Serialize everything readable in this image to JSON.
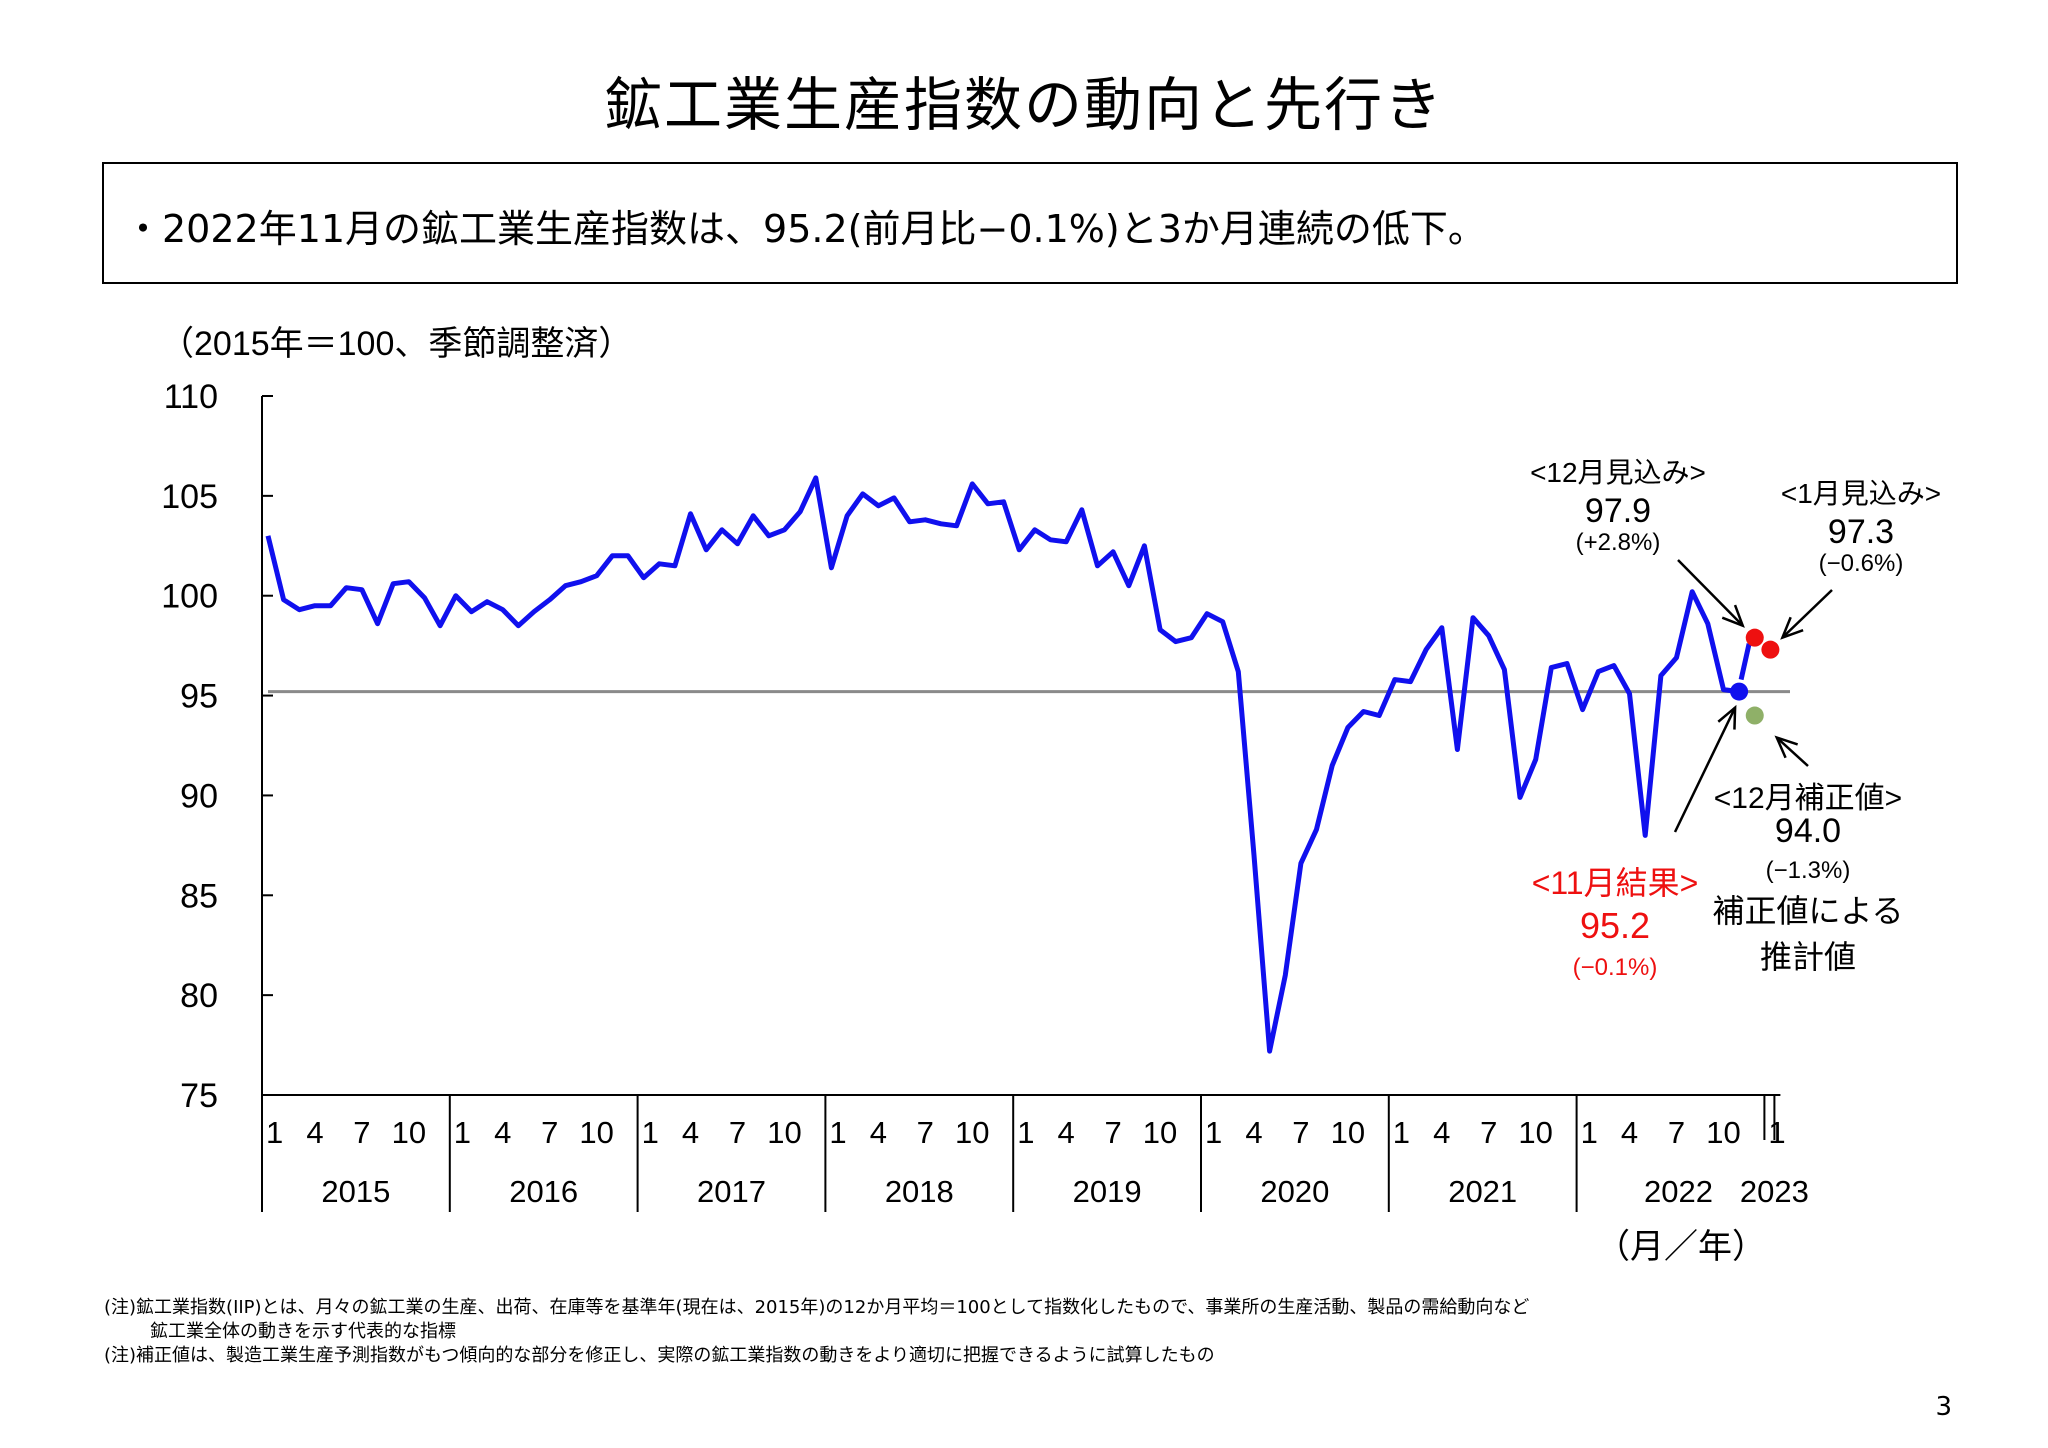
{
  "title": "鉱工業生産指数の動向と先行き",
  "summary": "・2022年11月の鉱工業生産指数は、95.2(前月比−0.1%)と3か月連続の低下。",
  "chart_data": {
    "type": "line",
    "unit_label": "（2015年＝100、季節調整済）",
    "x_axis_label": "（月／年）",
    "ylim": [
      75,
      110
    ],
    "y_ticks": [
      75,
      80,
      85,
      90,
      95,
      100,
      105,
      110
    ],
    "month_ticks": [
      "1",
      "4",
      "7",
      "10"
    ],
    "years": [
      "2015",
      "2016",
      "2017",
      "2018",
      "2019",
      "2020",
      "2021",
      "2022",
      "2023"
    ],
    "series": [
      {
        "color": "#1010ee",
        "start": "2015-01",
        "values": [
          103.0,
          99.8,
          99.3,
          99.5,
          99.5,
          100.4,
          100.3,
          98.6,
          100.6,
          100.7,
          99.9,
          98.5,
          100.0,
          99.2,
          99.7,
          99.3,
          98.5,
          99.2,
          99.8,
          100.5,
          100.7,
          101.0,
          102.0,
          102.0,
          100.9,
          101.6,
          101.5,
          104.1,
          102.3,
          103.3,
          102.6,
          104.0,
          103.0,
          103.3,
          104.2,
          105.9,
          101.4,
          104.0,
          105.1,
          104.5,
          104.9,
          103.7,
          103.8,
          103.6,
          103.5,
          105.6,
          104.6,
          104.7,
          102.3,
          103.3,
          102.8,
          102.7,
          104.3,
          101.5,
          102.2,
          100.5,
          102.5,
          98.3,
          97.7,
          97.9,
          99.1,
          98.7,
          96.2,
          87.0,
          77.2,
          81.0,
          86.6,
          88.3,
          91.5,
          93.4,
          94.2,
          94.0,
          95.8,
          95.7,
          97.3,
          98.4,
          92.3,
          98.9,
          98.0,
          96.3,
          89.9,
          91.8,
          96.4,
          96.6,
          94.3,
          96.2,
          96.5,
          95.1,
          88.0,
          96.0,
          96.9,
          100.2,
          98.6,
          95.3,
          95.2
        ],
        "projection_link": [
          95.8,
          97.6
        ]
      }
    ],
    "reference_line": 95.2,
    "points": [
      {
        "id": "nov-result",
        "month": "2022-11",
        "value": 95.2,
        "color": "#1010ee"
      },
      {
        "id": "dec-forecast",
        "month": "2022-12",
        "value": 97.9,
        "color": "#ee1010"
      },
      {
        "id": "jan-forecast",
        "month": "2023-01",
        "value": 97.3,
        "color": "#ee1010"
      },
      {
        "id": "dec-corrected",
        "month": "2022-12",
        "value": 94.0,
        "color": "#8fb068"
      }
    ],
    "annotations": {
      "dec_forecast": {
        "label": "<12月見込み>",
        "value": "97.9",
        "change": "(+2.8%)"
      },
      "jan_forecast": {
        "label": "<1月見込み>",
        "value": "97.3",
        "change": "(−0.6%)"
      },
      "dec_corrected": {
        "label": "<12月補正値>",
        "value": "94.0",
        "change": "(−1.3%)",
        "note1": "補正値による",
        "note2": "推計値"
      },
      "nov_result": {
        "label": "<11月結果>",
        "value": "95.2",
        "change": "(−0.1%)"
      }
    }
  },
  "notes": {
    "line1": "(注)鉱工業指数(IIP)とは、月々の鉱工業の生産、出荷、在庫等を基準年(現在は、2015年)の12か月平均＝100として指数化したもので、事業所の生産活動、製品の需給動向など",
    "line2": "鉱工業全体の動きを示す代表的な指標",
    "line3": "(注)補正値は、製造工業生産予測指数がもつ傾向的な部分を修正し、実際の鉱工業指数の動きをより適切に把握できるように試算したもの"
  },
  "page_number": "3"
}
